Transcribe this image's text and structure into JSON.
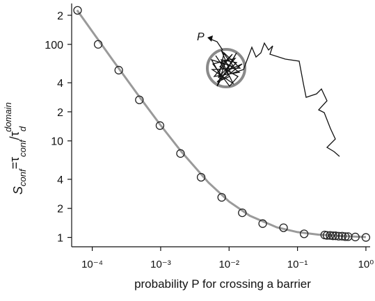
{
  "chart_data": {
    "type": "scatter",
    "xlabel": "probability P for crossing a barrier",
    "ylabel": [
      "S",
      "conf",
      "=τ",
      "conf",
      "/τ",
      "d",
      "domain"
    ],
    "xlog": true,
    "ylog": true,
    "xlim": [
      5e-05,
      1.1
    ],
    "ylim": [
      0.8,
      265
    ],
    "xticks": [
      {
        "value": 0.0001,
        "label": "10⁻⁴"
      },
      {
        "value": 0.001,
        "label": "10⁻³"
      },
      {
        "value": 0.01,
        "label": "10⁻²"
      },
      {
        "value": 0.1,
        "label": "10⁻¹"
      },
      {
        "value": 1,
        "label": "10⁰"
      }
    ],
    "yticks": [
      {
        "value": 200,
        "label": "2"
      },
      100,
      {
        "value": 40,
        "label": "4"
      },
      {
        "value": 20,
        "label": "2"
      },
      10,
      4,
      2,
      1
    ],
    "series": [
      {
        "type": "line",
        "color": "#9a9a9a",
        "x": [
          6e-05,
          0.0001,
          0.0002,
          0.0005,
          0.001,
          0.002,
          0.005,
          0.01,
          0.02,
          0.05,
          0.1,
          0.2,
          0.5,
          1
        ],
        "values": [
          226,
          136,
          68.5,
          28,
          14.5,
          7.75,
          3.7,
          2.35,
          1.68,
          1.27,
          1.135,
          1.07,
          1.03,
          1.01
        ]
      },
      {
        "type": "scatter",
        "color": "#222222",
        "x": [
          6.1e-05,
          0.000122,
          0.000244,
          0.000488,
          0.000977,
          0.00195,
          0.0039,
          0.0078,
          0.0156,
          0.031,
          0.0625,
          0.125,
          0.25,
          0.27,
          0.3,
          0.33,
          0.36,
          0.4,
          0.45,
          0.5,
          0.55,
          0.7,
          1.0
        ],
        "values": [
          225,
          100,
          54,
          26.6,
          14.4,
          7.4,
          4.2,
          2.6,
          1.8,
          1.39,
          1.26,
          1.09,
          1.06,
          1.05,
          1.05,
          1.04,
          1.04,
          1.03,
          1.03,
          1.02,
          1.02,
          1.01,
          1.0
        ]
      }
    ],
    "inset": {
      "label": "P"
    }
  }
}
